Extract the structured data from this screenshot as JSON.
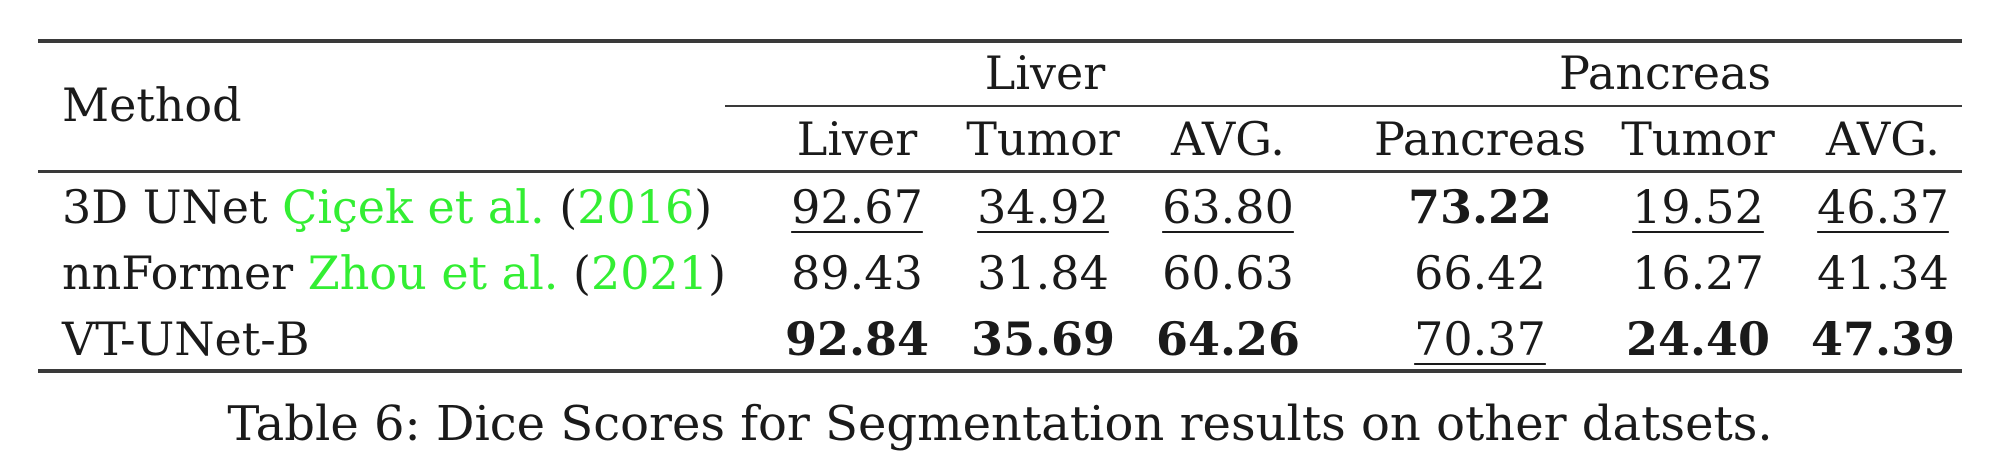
{
  "table": {
    "header": {
      "method": "Method",
      "groups": [
        "Liver",
        "Pancreas"
      ],
      "columns": [
        "Liver",
        "Tumor",
        "AVG.",
        "Pancreas",
        "Tumor",
        "AVG."
      ]
    },
    "rows": [
      {
        "method": "3D UNet",
        "cite_authors": "Çiçek et al.",
        "cite_open": "(",
        "cite_year": "2016",
        "cite_close": ")",
        "values": [
          "92.67",
          "34.92",
          "63.80",
          "73.22",
          "19.52",
          "46.37"
        ],
        "bold": [
          false,
          false,
          false,
          true,
          false,
          false
        ],
        "underline": [
          true,
          true,
          true,
          false,
          true,
          true
        ]
      },
      {
        "method": "nnFormer",
        "cite_authors": "Zhou et al.",
        "cite_open": "(",
        "cite_year": "2021",
        "cite_close": ")",
        "values": [
          "89.43",
          "31.84",
          "60.63",
          "66.42",
          "16.27",
          "41.34"
        ],
        "bold": [
          false,
          false,
          false,
          false,
          false,
          false
        ],
        "underline": [
          false,
          false,
          false,
          false,
          false,
          false
        ]
      },
      {
        "method": "VT-UNet-B",
        "values": [
          "92.84",
          "35.69",
          "64.26",
          "70.37",
          "24.40",
          "47.39"
        ],
        "bold": [
          true,
          true,
          true,
          false,
          true,
          true
        ],
        "underline": [
          false,
          false,
          false,
          true,
          false,
          false
        ]
      }
    ],
    "caption": "Table 6: Dice Scores for Segmentation results on other datsets."
  },
  "colors": {
    "citation": "#33ee33",
    "text": "#1a1a1a",
    "rule": "#3a3a3a"
  }
}
